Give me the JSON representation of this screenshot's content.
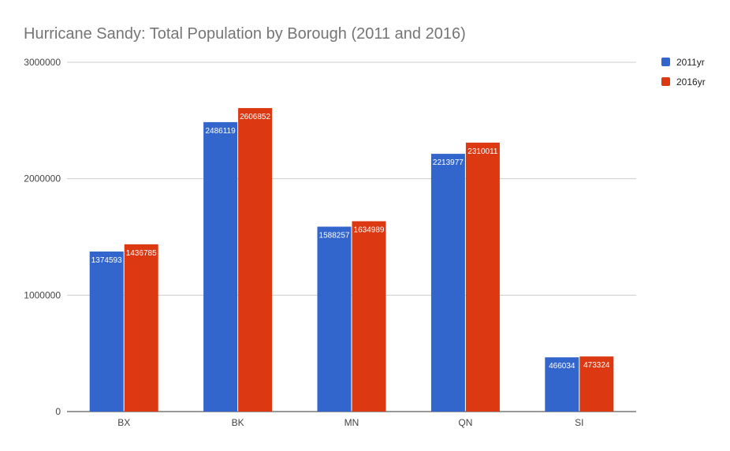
{
  "chart_data": {
    "type": "bar",
    "title": "Hurricane Sandy: Total Population by Borough (2011 and 2016)",
    "xlabel": "",
    "ylabel": "",
    "categories": [
      "BX",
      "BK",
      "MN",
      "QN",
      "SI"
    ],
    "series": [
      {
        "name": "2011yr",
        "color": "#3366cc",
        "values": [
          1374593,
          2486119,
          1588257,
          2213977,
          466034
        ]
      },
      {
        "name": "2016yr",
        "color": "#dc3912",
        "values": [
          1436785,
          2606852,
          1634989,
          2310011,
          473324
        ]
      }
    ],
    "ylim": [
      0,
      3000000
    ],
    "yticks": [
      0,
      1000000,
      2000000,
      3000000
    ],
    "grid": true,
    "legend_position": "right"
  }
}
